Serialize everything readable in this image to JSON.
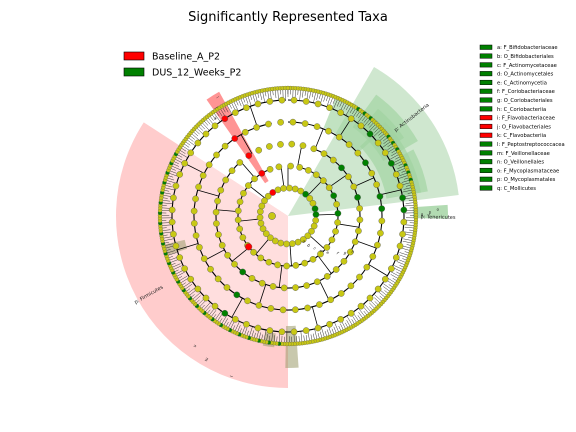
{
  "title": "Significantly Represented Taxa",
  "colors": {
    "group_a": "#ff0000",
    "group_b": "#008000",
    "node_neutral": "#c8c814",
    "sector_a": "#ff9999",
    "sector_b": "#66b366",
    "branch": "#000000"
  },
  "legend": [
    {
      "label": "Baseline_A_P2",
      "color": "#ff0000"
    },
    {
      "label": "DUS_12_Weeks_P2",
      "color": "#008000"
    }
  ],
  "taxa_key": [
    {
      "letter": "a",
      "label": "a: F_Bifidobacteriaceae",
      "color": "#008000"
    },
    {
      "letter": "b",
      "label": "b: O_Bifidobacteriales",
      "color": "#008000"
    },
    {
      "letter": "c",
      "label": "c: F_Actinomycetaceae",
      "color": "#008000"
    },
    {
      "letter": "d",
      "label": "d: O_Actinomycetales",
      "color": "#008000"
    },
    {
      "letter": "e",
      "label": "e: C_Actinomycetia",
      "color": "#008000"
    },
    {
      "letter": "f",
      "label": "f: F_Coriobacteriaceae",
      "color": "#008000"
    },
    {
      "letter": "g",
      "label": "g: O_Coriobacteriales",
      "color": "#008000"
    },
    {
      "letter": "h",
      "label": "h: C_Coriobacteriia",
      "color": "#008000"
    },
    {
      "letter": "i",
      "label": "i: F_Flavobacteriaceae",
      "color": "#ff0000"
    },
    {
      "letter": "j",
      "label": "j: O_Flavobacteriales",
      "color": "#ff0000"
    },
    {
      "letter": "k",
      "label": "k: C_Flavobacteriia",
      "color": "#ff0000"
    },
    {
      "letter": "l",
      "label": "l: F_Peptostreptococcacea",
      "color": "#008000"
    },
    {
      "letter": "m",
      "label": "m: F_Veillonellaceae",
      "color": "#008000"
    },
    {
      "letter": "n",
      "label": "n: O_Veillonellales",
      "color": "#008000"
    },
    {
      "letter": "o",
      "label": "o: F_Mycoplasmataceae",
      "color": "#008000"
    },
    {
      "letter": "p",
      "label": "p: O_Mycoplasmatales",
      "color": "#008000"
    },
    {
      "letter": "q",
      "label": "q: C_Mollicutes",
      "color": "#008000"
    }
  ],
  "phylum_labels": [
    {
      "label": "p: Actinobacteria",
      "group": "group_b"
    },
    {
      "label": "p: Tenericutes",
      "group": "group_b"
    },
    {
      "label": "p: Firmicutes",
      "group": "group_a"
    }
  ]
}
